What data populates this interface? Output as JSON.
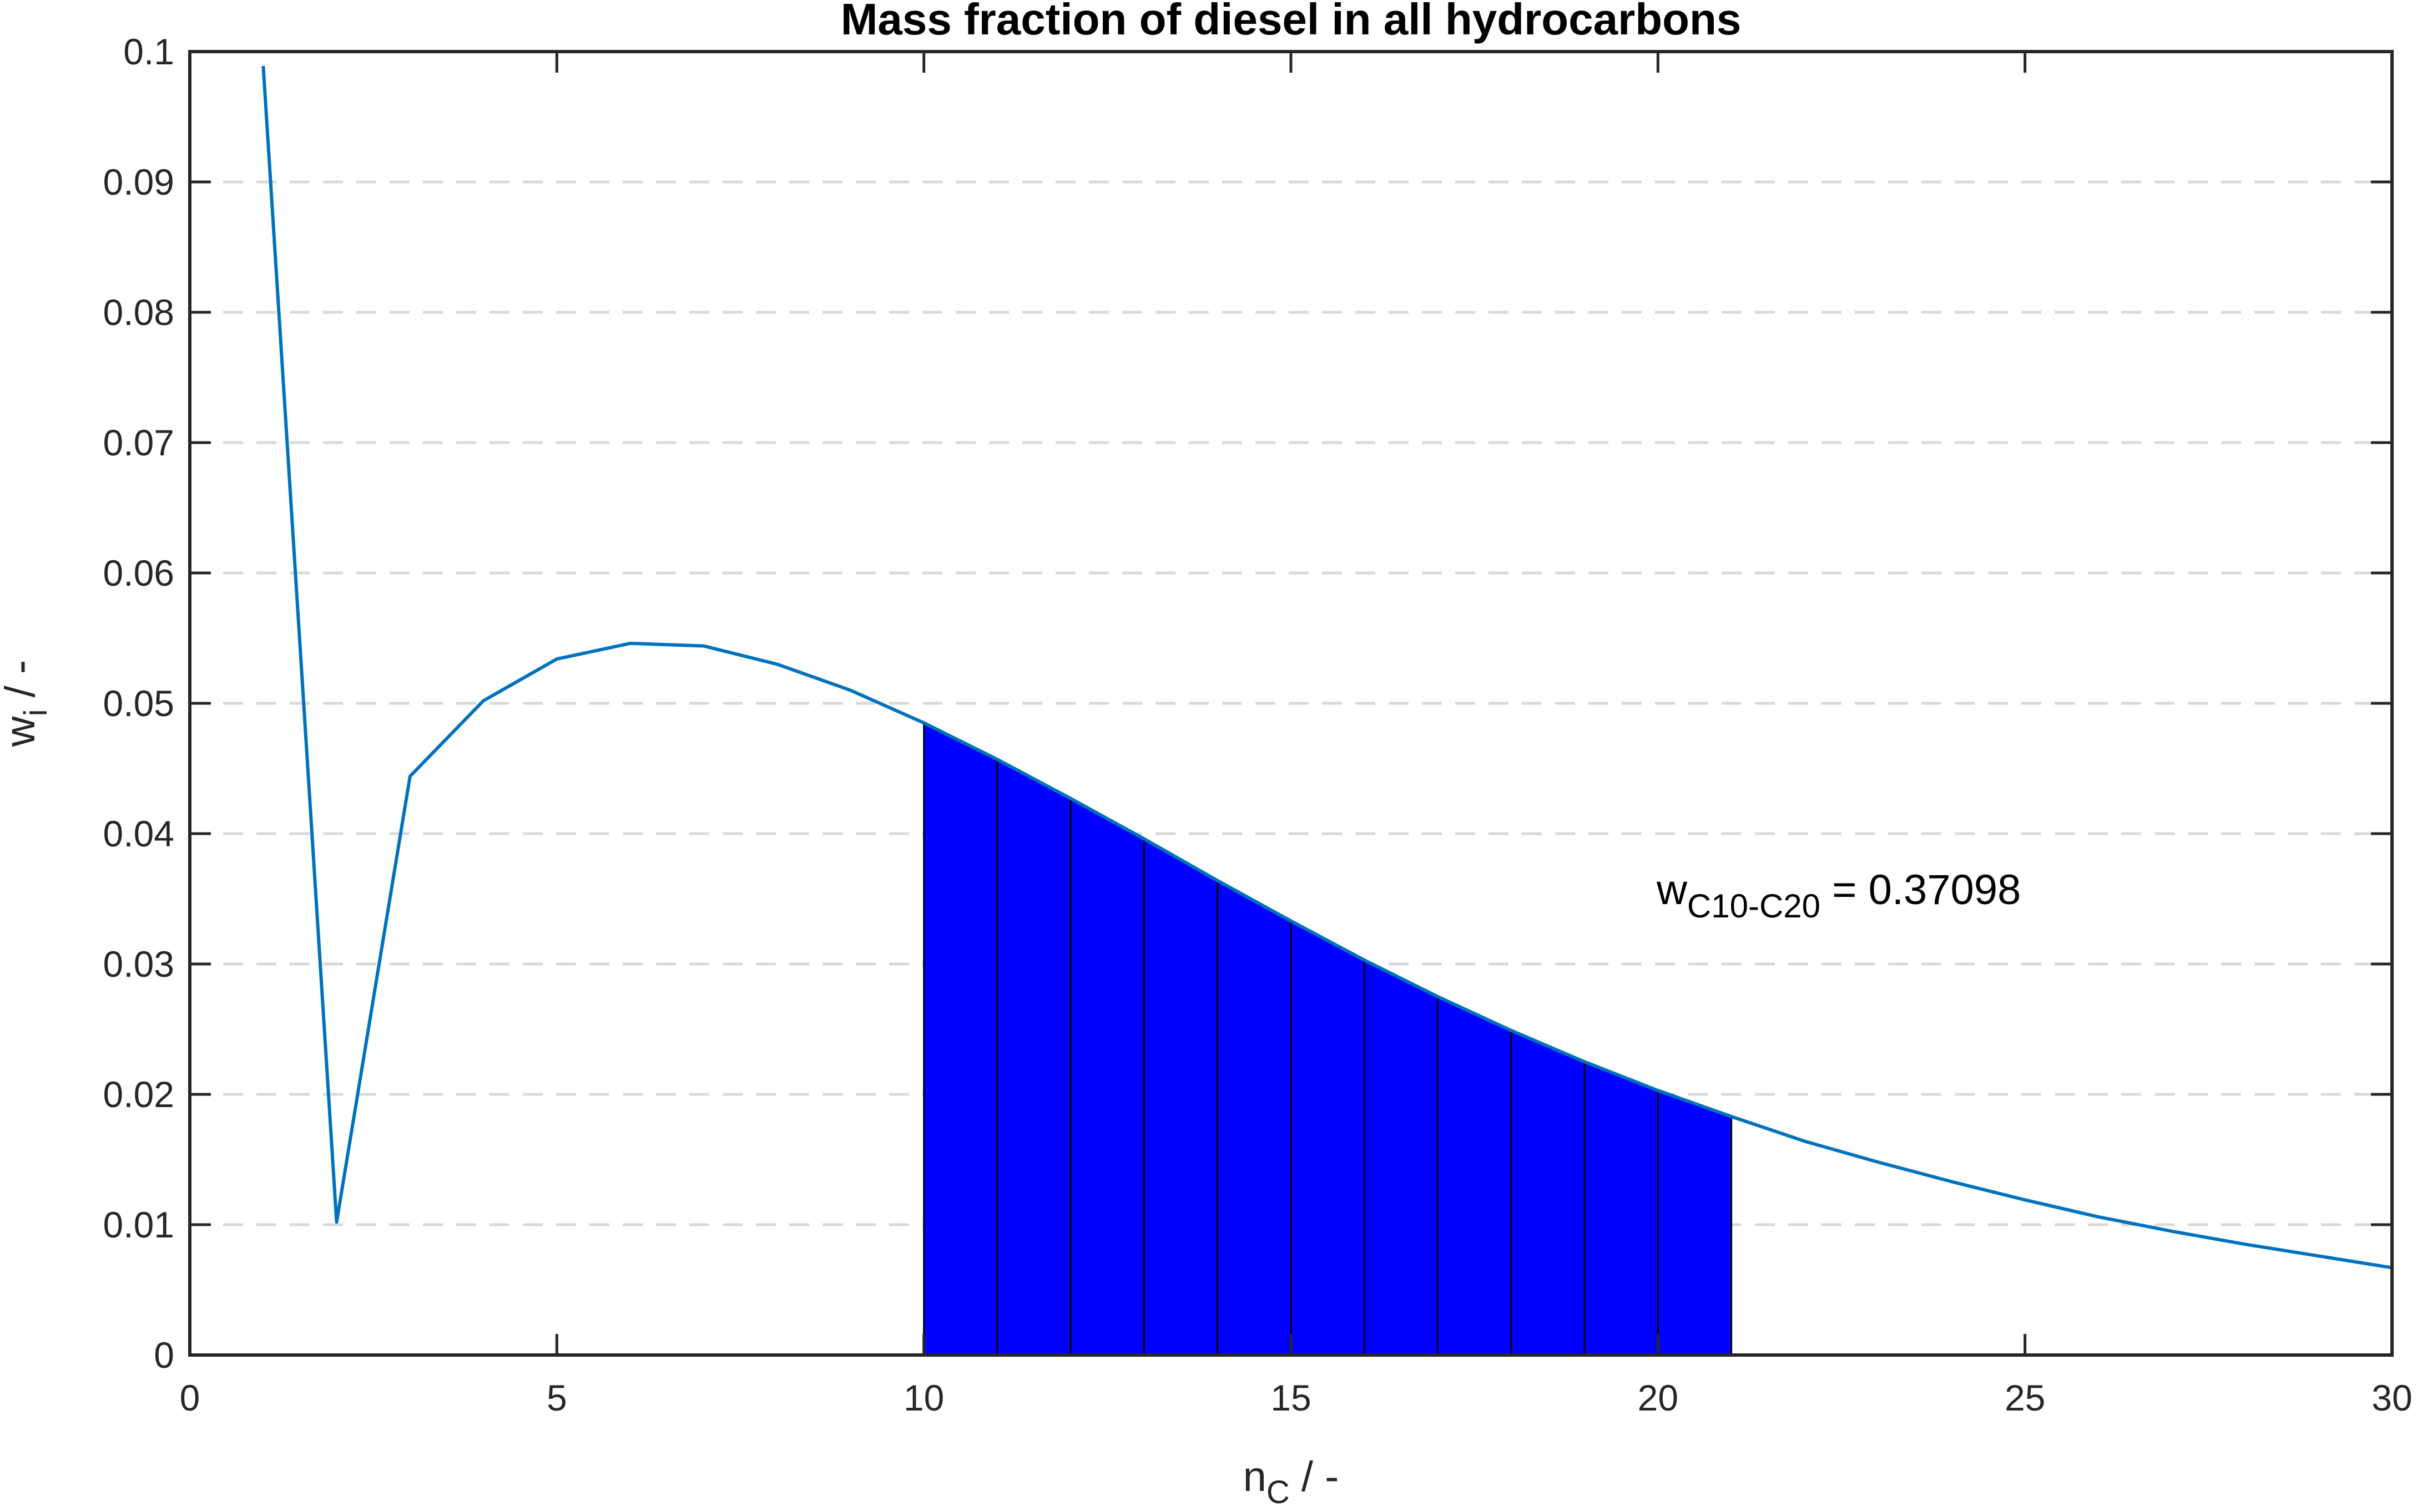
{
  "chart_data": {
    "type": "line",
    "title": "Mass fraction of diesel in all hydrocarbons",
    "xlabel": {
      "base": "n",
      "sub": "C",
      "suffix": " / -"
    },
    "ylabel": {
      "base": "w",
      "sub": "i",
      "suffix": " / -"
    },
    "xlim": [
      0,
      30
    ],
    "ylim": [
      0,
      0.1
    ],
    "xticks": [
      0,
      5,
      10,
      15,
      20,
      25,
      30
    ],
    "xtick_labels": [
      "0",
      "5",
      "10",
      "15",
      "20",
      "25",
      "30"
    ],
    "yticks": [
      0,
      0.01,
      0.02,
      0.03,
      0.04,
      0.05,
      0.06,
      0.07,
      0.08,
      0.09,
      0.1
    ],
    "ytick_labels": [
      "0",
      "0.01",
      "0.02",
      "0.03",
      "0.04",
      "0.05",
      "0.06",
      "0.07",
      "0.08",
      "0.09",
      "0.1"
    ],
    "grid": "horizontal dashed",
    "series": [
      {
        "color": "#0072BD",
        "x": [
          1,
          2,
          3,
          4,
          5,
          6,
          7,
          8,
          9,
          10,
          11,
          12,
          13,
          14,
          15,
          16,
          17,
          18,
          19,
          20,
          21,
          22,
          23,
          24,
          25,
          26,
          27,
          28,
          29,
          30
        ],
        "values": [
          0.0989,
          0.0102,
          0.0444,
          0.0502,
          0.0534,
          0.0546,
          0.0544,
          0.053,
          0.051,
          0.0485,
          0.0457,
          0.0427,
          0.0396,
          0.0364,
          0.0333,
          0.0303,
          0.0275,
          0.0249,
          0.0225,
          0.0203,
          0.0183,
          0.0164,
          0.0148,
          0.0133,
          0.0119,
          0.0106,
          0.0095,
          0.0085,
          0.0076,
          0.0067
        ]
      }
    ],
    "shaded_region": {
      "color": "#0000FF",
      "x_from": 10,
      "x_to": 21,
      "bar_edges": [
        10,
        11,
        12,
        13,
        14,
        15,
        16,
        17,
        18,
        19,
        20,
        21
      ]
    },
    "annotation": {
      "base": "w",
      "sub": "C10-C20",
      "suffix": " = 0.37098",
      "x": 20,
      "y": 0.035
    }
  }
}
